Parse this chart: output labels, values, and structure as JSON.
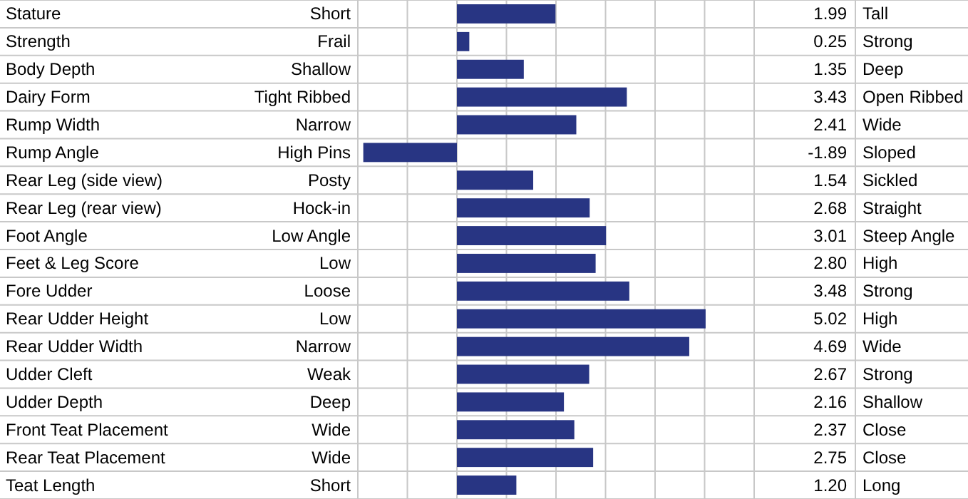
{
  "chart_data": {
    "type": "bar",
    "orientation": "horizontal",
    "categories": [
      "Stature",
      "Strength",
      "Body Depth",
      "Dairy Form",
      "Rump Width",
      "Rump Angle",
      "Rear Leg (side view)",
      "Rear Leg (rear view)",
      "Foot Angle",
      "Feet & Leg Score",
      "Fore Udder",
      "Rear Udder Height",
      "Rear Udder Width",
      "Udder Cleft",
      "Udder Depth",
      "Front Teat Placement",
      "Rear Teat Placement",
      "Teat Length"
    ],
    "values": [
      1.99,
      0.25,
      1.35,
      3.43,
      2.41,
      -1.89,
      1.54,
      2.68,
      3.01,
      2.8,
      3.48,
      5.02,
      4.69,
      2.67,
      2.16,
      2.37,
      2.75,
      1.2
    ],
    "value_labels": [
      "1.99",
      "0.25",
      "1.35",
      "3.43",
      "2.41",
      "-1.89",
      "1.54",
      "2.68",
      "3.01",
      "2.80",
      "3.48",
      "5.02",
      "4.69",
      "2.67",
      "2.16",
      "2.37",
      "2.75",
      "1.20"
    ],
    "data_labels": true,
    "color": "#283583",
    "xlim": [
      -2,
      6
    ],
    "xticks": [
      {
        "value": -2,
        "label": null
      },
      {
        "value": -1,
        "label": null
      },
      {
        "value": 0,
        "label": null
      },
      {
        "value": 1,
        "label": null
      },
      {
        "value": 2,
        "label": null
      },
      {
        "value": 3,
        "label": null
      },
      {
        "value": 4,
        "label": null
      },
      {
        "value": 5,
        "label": null
      },
      {
        "value": 6,
        "label": null
      }
    ],
    "grid": "x",
    "annotations": [
      "Short",
      "Tall",
      "Frail",
      "Strong",
      "Shallow",
      "Deep",
      "Tight Ribbed",
      "Open Ribbed",
      "Narrow",
      "Wide",
      "High Pins",
      "Sloped",
      "Posty",
      "Sickled",
      "Hock-in",
      "Straight",
      "Low Angle",
      "Steep Angle",
      "Low",
      "High",
      "Loose",
      "Strong",
      "Low",
      "High",
      "Narrow",
      "Wide",
      "Weak",
      "Strong",
      "Deep",
      "Shallow",
      "Wide",
      "Close",
      "Wide",
      "Close",
      "Short",
      "Long"
    ]
  }
}
